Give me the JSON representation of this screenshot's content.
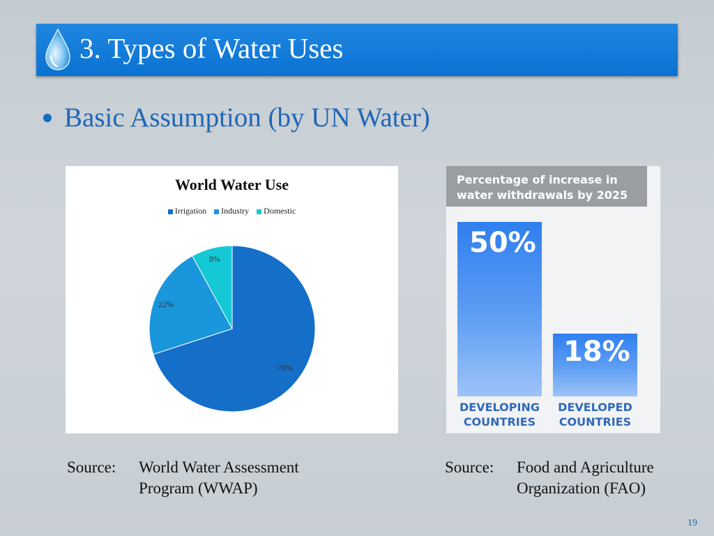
{
  "slide": {
    "title": "3. Types of Water Uses",
    "bullet": "Basic Assumption (by UN Water)",
    "page_number": "19",
    "accent_color": "#0a72d2",
    "icon": "water-drop-icon"
  },
  "chart_data": [
    {
      "type": "pie",
      "title": "World Water Use",
      "categories": [
        "Irrigation",
        "Industry",
        "Domestic"
      ],
      "values": [
        70,
        22,
        8
      ],
      "labels": [
        "70%",
        "22%",
        "8%"
      ],
      "colors": [
        "#156fc8",
        "#1a96dc",
        "#14c8d6"
      ],
      "legend": "top"
    },
    {
      "type": "bar",
      "title": "Percentage of increase in water withdrawals by 2025",
      "categories": [
        "DEVELOPING COUNTRIES",
        "DEVELOPED COUNTRIES"
      ],
      "values": [
        50,
        18
      ],
      "labels": [
        "50%",
        "18%"
      ],
      "ylim": [
        0,
        55
      ]
    }
  ],
  "sources": [
    {
      "label": "Source:",
      "text": [
        "World Water Assessment",
        "Program (WWAP)"
      ]
    },
    {
      "label": "Source:",
      "text": [
        "Food and Agriculture",
        "Organization (FAO)"
      ]
    }
  ]
}
